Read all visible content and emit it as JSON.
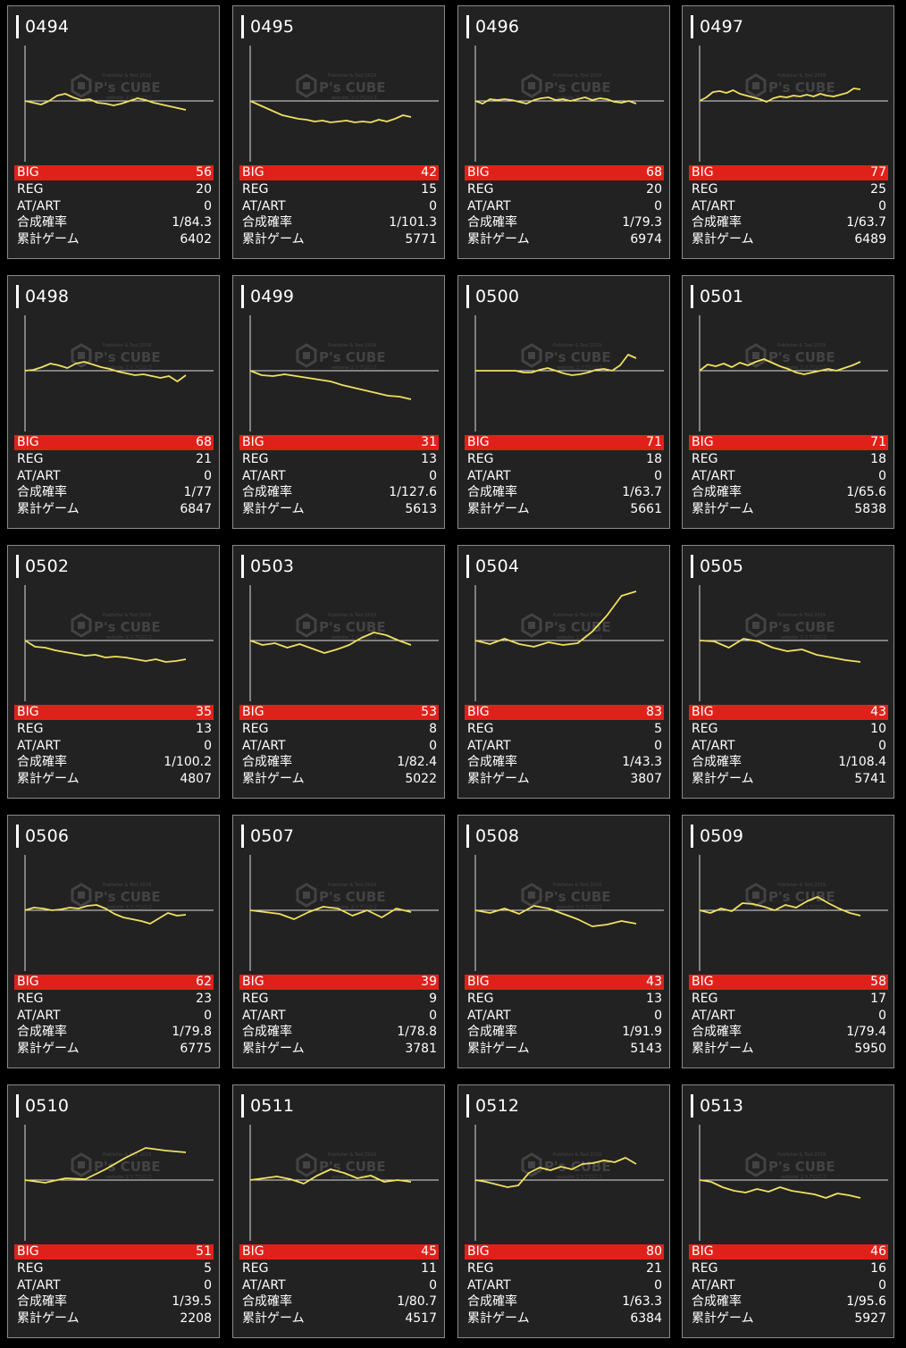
{
  "stat_labels": {
    "big": "BIG",
    "reg": "REG",
    "at": "AT/ART",
    "rate": "合成確率",
    "games": "累計ゲーム"
  },
  "watermark": {
    "brand": "P's CUBE",
    "tagline_top": "Publisher & Tool 2019",
    "tagline_bottom": "website エリアロロゴ"
  },
  "colors": {
    "background": "#000000",
    "card_background": "#222222",
    "card_border": "#8a8a8a",
    "big_bar": "#e0211a",
    "graph_line": "#f0e060",
    "baseline": "#dddddd",
    "text": "#ffffff"
  },
  "machines": [
    {
      "id": "0494",
      "big": "56",
      "reg": "20",
      "at": "0",
      "rate": "1/84.3",
      "games": "6402",
      "graph": [
        0,
        -2,
        -4,
        0,
        6,
        8,
        4,
        1,
        2,
        -2,
        -3,
        -5,
        -3,
        0,
        3,
        1,
        -2,
        -4,
        -6,
        -8,
        -10
      ]
    },
    {
      "id": "0495",
      "big": "42",
      "reg": "15",
      "at": "0",
      "rate": "1/101.3",
      "games": "5771",
      "graph": [
        0,
        -4,
        -8,
        -12,
        -16,
        -18,
        -20,
        -21,
        -23,
        -22,
        -24,
        -23,
        -22,
        -24,
        -23,
        -24,
        -21,
        -23,
        -20,
        -16,
        -18
      ]
    },
    {
      "id": "0496",
      "big": "68",
      "reg": "20",
      "at": "0",
      "rate": "1/79.3",
      "games": "6974",
      "graph": [
        0,
        -3,
        2,
        1,
        2,
        1,
        -1,
        -3,
        1,
        3,
        4,
        1,
        2,
        0,
        2,
        4,
        1,
        3,
        2,
        -1,
        -2,
        0,
        -3
      ]
    },
    {
      "id": "0497",
      "big": "77",
      "reg": "25",
      "at": "0",
      "rate": "1/63.7",
      "games": "6489",
      "graph": [
        0,
        4,
        10,
        11,
        9,
        12,
        8,
        6,
        4,
        2,
        -1,
        3,
        5,
        4,
        6,
        5,
        7,
        5,
        8,
        6,
        5,
        7,
        9,
        14,
        13
      ]
    },
    {
      "id": "0498",
      "big": "68",
      "reg": "21",
      "at": "0",
      "rate": "1/77",
      "games": "6847",
      "graph": [
        0,
        1,
        4,
        8,
        6,
        3,
        8,
        10,
        7,
        4,
        2,
        -1,
        -3,
        -5,
        -4,
        -6,
        -8,
        -6,
        -12,
        -5
      ]
    },
    {
      "id": "0499",
      "big": "31",
      "reg": "13",
      "at": "0",
      "rate": "1/127.6",
      "games": "5613",
      "graph": [
        0,
        -5,
        -6,
        -4,
        -6,
        -8,
        -10,
        -12,
        -16,
        -19,
        -22,
        -25,
        -28,
        -29,
        -32
      ]
    },
    {
      "id": "0500",
      "big": "71",
      "reg": "18",
      "at": "0",
      "rate": "1/63.7",
      "games": "5661",
      "graph": [
        0,
        0,
        0,
        0,
        0,
        0,
        -2,
        -2,
        1,
        3,
        0,
        -3,
        -5,
        -4,
        -2,
        1,
        2,
        0,
        6,
        18,
        14
      ]
    },
    {
      "id": "0501",
      "big": "71",
      "reg": "18",
      "at": "0",
      "rate": "1/65.6",
      "games": "5838",
      "graph": [
        0,
        7,
        5,
        8,
        4,
        9,
        6,
        10,
        13,
        9,
        5,
        2,
        -2,
        -4,
        -2,
        0,
        2,
        0,
        3,
        6,
        10
      ]
    },
    {
      "id": "0502",
      "big": "35",
      "reg": "13",
      "at": "0",
      "rate": "1/100.2",
      "games": "4807",
      "graph": [
        0,
        -7,
        -8,
        -11,
        -13,
        -15,
        -17,
        -16,
        -19,
        -18,
        -19,
        -21,
        -23,
        -21,
        -24,
        -23,
        -21
      ]
    },
    {
      "id": "0503",
      "big": "53",
      "reg": "8",
      "at": "0",
      "rate": "1/82.4",
      "games": "5022",
      "graph": [
        0,
        -5,
        -3,
        -8,
        -4,
        -9,
        -14,
        -10,
        -5,
        3,
        9,
        6,
        0,
        -5
      ]
    },
    {
      "id": "0504",
      "big": "83",
      "reg": "5",
      "at": "0",
      "rate": "1/43.3",
      "games": "3807",
      "graph": [
        0,
        -4,
        2,
        -4,
        -7,
        -2,
        -5,
        -3,
        10,
        28,
        50,
        55
      ]
    },
    {
      "id": "0505",
      "big": "43",
      "reg": "10",
      "at": "0",
      "rate": "1/108.4",
      "games": "5741",
      "graph": [
        0,
        -1,
        -8,
        2,
        -1,
        -8,
        -12,
        -10,
        -16,
        -19,
        -22,
        -24
      ]
    },
    {
      "id": "0506",
      "big": "62",
      "reg": "23",
      "at": "0",
      "rate": "1/79.8",
      "games": "6775",
      "graph": [
        0,
        3,
        2,
        0,
        1,
        3,
        2,
        5,
        6,
        2,
        -4,
        -8,
        -10,
        -12,
        -15,
        -9,
        -3,
        -6,
        -5
      ]
    },
    {
      "id": "0507",
      "big": "39",
      "reg": "9",
      "at": "0",
      "rate": "1/78.8",
      "games": "3781",
      "graph": [
        0,
        -2,
        -4,
        -10,
        -2,
        4,
        2,
        -6,
        0,
        -8,
        2,
        -2
      ]
    },
    {
      "id": "0508",
      "big": "43",
      "reg": "13",
      "at": "0",
      "rate": "1/91.9",
      "games": "5143",
      "graph": [
        0,
        -3,
        2,
        -4,
        5,
        2,
        -4,
        -10,
        -18,
        -16,
        -12,
        -15
      ]
    },
    {
      "id": "0509",
      "big": "58",
      "reg": "17",
      "at": "0",
      "rate": "1/79.4",
      "games": "5950",
      "graph": [
        0,
        -3,
        2,
        -1,
        8,
        7,
        4,
        0,
        6,
        3,
        10,
        15,
        8,
        2,
        -3,
        -6
      ]
    },
    {
      "id": "0510",
      "big": "51",
      "reg": "5",
      "at": "0",
      "rate": "1/39.5",
      "games": "2208",
      "graph": [
        0,
        -3,
        2,
        1,
        12,
        25,
        36,
        33,
        31
      ]
    },
    {
      "id": "0511",
      "big": "45",
      "reg": "11",
      "at": "0",
      "rate": "1/80.7",
      "games": "4517",
      "graph": [
        0,
        2,
        4,
        1,
        -4,
        5,
        12,
        8,
        2,
        5,
        -2,
        0,
        -2
      ]
    },
    {
      "id": "0512",
      "big": "80",
      "reg": "21",
      "at": "0",
      "rate": "1/63.3",
      "games": "6384",
      "graph": [
        0,
        -2,
        -5,
        -8,
        -6,
        8,
        14,
        11,
        15,
        12,
        18,
        19,
        22,
        20,
        25,
        18
      ]
    },
    {
      "id": "0513",
      "big": "46",
      "reg": "16",
      "at": "0",
      "rate": "1/95.6",
      "games": "5927",
      "graph": [
        0,
        -2,
        -8,
        -12,
        -14,
        -10,
        -13,
        -8,
        -12,
        -14,
        -16,
        -20,
        -15,
        -17,
        -20
      ]
    }
  ]
}
